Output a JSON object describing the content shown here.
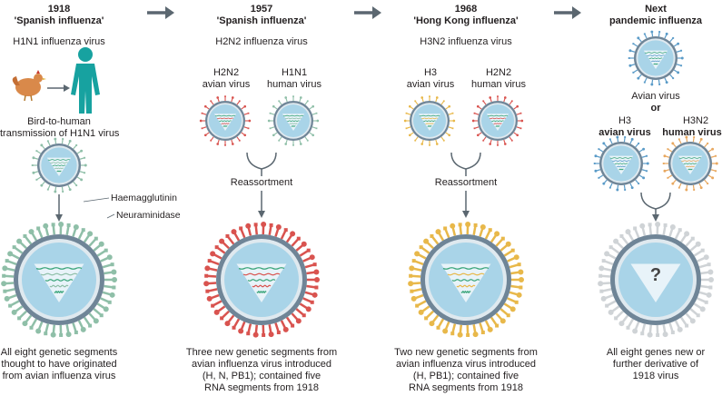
{
  "columns": [
    {
      "year": "1918",
      "name": "'Spanish influenza'",
      "subtype": "H1N1 influenza virus",
      "transmission": [
        "Bird-to-human",
        "transmission of H1N1 virus"
      ],
      "caption": [
        "All eight genetic segments",
        "thought to have originated",
        "from avian influenza virus"
      ],
      "color": "#8fbfa8"
    },
    {
      "year": "1957",
      "name": "'Spanish influenza'",
      "subtype": "H2N2 influenza virus",
      "parents": [
        {
          "line1": "H2N2",
          "line2": "avian virus",
          "color": "#d9534f"
        },
        {
          "line1": "H1N1",
          "line2": "human virus",
          "color": "#8fbfa8"
        }
      ],
      "process": "Reassortment",
      "caption": [
        "Three new genetic segments from",
        "avian influenza virus introduced",
        "(H, N, PB1); contained five",
        "RNA segments from 1918"
      ],
      "color": "#d9534f"
    },
    {
      "year": "1968",
      "name": "'Hong Kong influenza'",
      "subtype": "H3N2 influenza virus",
      "parents": [
        {
          "line1": "H3",
          "line2": "avian virus",
          "color": "#e8b84a"
        },
        {
          "line1": "H2N2",
          "line2": "human virus",
          "color": "#d9534f"
        }
      ],
      "process": "Reassortment",
      "caption": [
        "Two new genetic segments from",
        "avian influenza virus introduced",
        "(H, PB1); contained five",
        "RNA segments from 1918"
      ],
      "color": "#e8b84a"
    },
    {
      "title": [
        "Next",
        "pandemic influenza"
      ],
      "avian_label": "Avian virus",
      "or_label": "or",
      "parents": [
        {
          "line1": "H3",
          "line2": "avian virus",
          "color": "#5a9bc8"
        },
        {
          "line1": "H3N2",
          "line2": "human virus",
          "color": "#e8a860"
        }
      ],
      "unknown_mark": "?",
      "caption": [
        "All eight genes new or",
        "further derivative of",
        "1918 virus"
      ],
      "color": "#cfd3d6"
    }
  ],
  "labels": {
    "haemagglutinin": "Haemagglutinin",
    "neuraminidase": "Neuraminidase"
  },
  "icons": [
    "chicken-icon",
    "human-figure-icon",
    "timeline-arrow-icon"
  ],
  "colors": {
    "arrow": "#5b6770",
    "human": "#17a2a0",
    "capsule": "#a9d4e8",
    "membrane": "#7a8fa0"
  }
}
